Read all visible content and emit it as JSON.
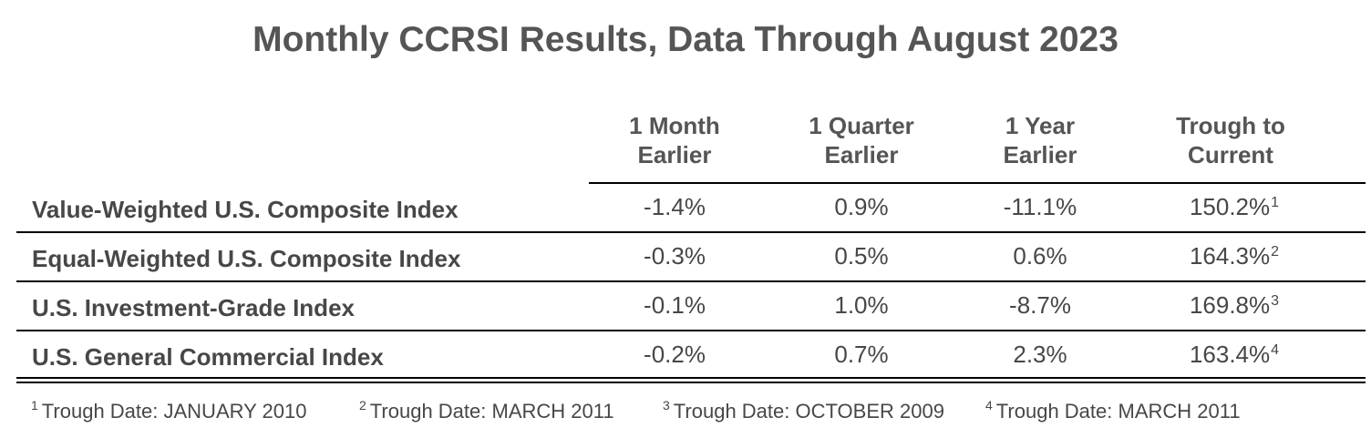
{
  "title": "Monthly CCRSI Results, Data Through August 2023",
  "columns": [
    {
      "line1": "1 Month",
      "line2": "Earlier"
    },
    {
      "line1": "1 Quarter",
      "line2": "Earlier"
    },
    {
      "line1": "1 Year",
      "line2": "Earlier"
    },
    {
      "line1": "Trough to",
      "line2": "Current"
    }
  ],
  "rows": [
    {
      "label": "Value-Weighted U.S. Composite Index",
      "m1": "-1.4%",
      "q1": "0.9%",
      "y1": "-11.1%",
      "trough": "150.2%",
      "note": "1"
    },
    {
      "label": "Equal-Weighted U.S. Composite Index",
      "m1": "-0.3%",
      "q1": "0.5%",
      "y1": "0.6%",
      "trough": "164.3%",
      "note": "2"
    },
    {
      "label": "U.S. Investment-Grade Index",
      "m1": "-0.1%",
      "q1": "1.0%",
      "y1": "-8.7%",
      "trough": "169.8%",
      "note": "3"
    },
    {
      "label": "U.S. General Commercial Index",
      "m1": "-0.2%",
      "q1": "0.7%",
      "y1": "2.3%",
      "trough": "163.4%",
      "note": "4"
    }
  ],
  "footnotes": [
    {
      "num": "1",
      "text": "Trough Date: JANUARY 2010"
    },
    {
      "num": "2",
      "text": "Trough Date: MARCH 2011"
    },
    {
      "num": "3",
      "text": "Trough Date: OCTOBER 2009"
    },
    {
      "num": "4",
      "text": "Trough Date: MARCH 2011"
    }
  ]
}
